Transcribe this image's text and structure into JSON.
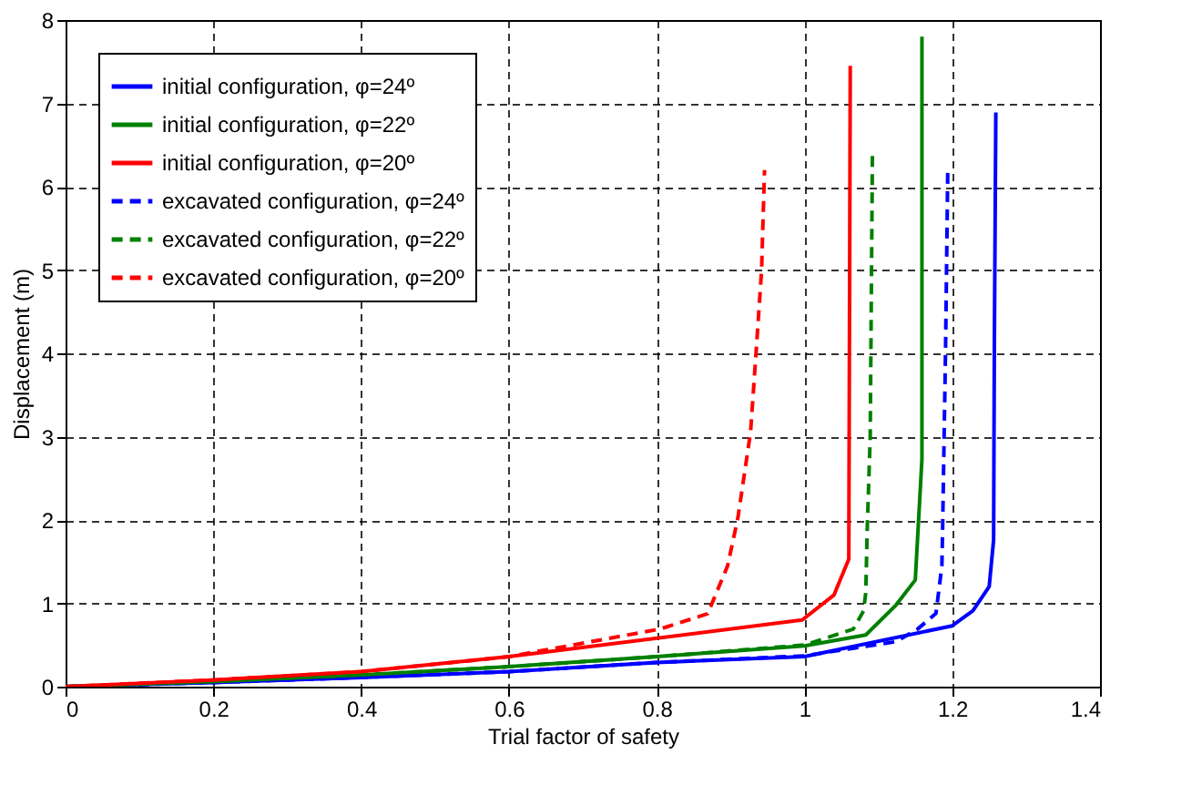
{
  "chart_data": {
    "type": "line",
    "xlabel": "Trial factor of safety",
    "ylabel": "Displacement (m)",
    "xlim": [
      0,
      1.4
    ],
    "xticks": [
      0,
      0.2,
      0.4,
      0.6,
      0.8,
      1,
      1.2,
      1.4
    ],
    "ylim": [
      0,
      8
    ],
    "yticks": [
      0,
      1,
      2,
      3,
      4,
      5,
      6,
      7,
      8
    ],
    "grid": true,
    "legend": "top left",
    "series": [
      {
        "name": "initial configuration, φ=24º",
        "color": "#0000ff",
        "line_style": "solid",
        "x": [
          0,
          0.2,
          0.4,
          0.6,
          0.8,
          1.0,
          1.2,
          1.228,
          1.25,
          1.256,
          1.257,
          1.259
        ],
        "values": [
          0,
          0.05,
          0.11,
          0.18,
          0.29,
          0.36,
          0.73,
          0.91,
          1.2,
          1.76,
          4.07,
          6.89
        ]
      },
      {
        "name": "initial configuration, φ=22º",
        "color": "#008000",
        "line_style": "solid",
        "x": [
          0,
          0.2,
          0.4,
          0.6,
          0.8,
          1.0,
          1.083,
          1.124,
          1.15,
          1.159,
          1.159
        ],
        "values": [
          0,
          0.06,
          0.14,
          0.24,
          0.36,
          0.49,
          0.62,
          0.98,
          1.28,
          2.73,
          7.8
        ]
      },
      {
        "name": "initial configuration, φ=20º",
        "color": "#ff0000",
        "line_style": "solid",
        "x": [
          0,
          0.2,
          0.4,
          0.6,
          0.997,
          1.04,
          1.06,
          1.062
        ],
        "values": [
          0,
          0.08,
          0.18,
          0.36,
          0.8,
          1.1,
          1.53,
          7.45
        ]
      },
      {
        "name": "excavated configuration, φ=24º",
        "color": "#0000ff",
        "line_style": "dashed",
        "x": [
          0,
          0.2,
          0.4,
          0.6,
          0.8,
          1.0,
          1.124,
          1.153,
          1.178,
          1.186,
          1.187,
          1.191,
          1.194
        ],
        "values": [
          0,
          0.05,
          0.11,
          0.18,
          0.29,
          0.37,
          0.54,
          0.69,
          0.88,
          1.45,
          1.9,
          4.07,
          6.23
        ]
      },
      {
        "name": "excavated configuration, φ=22º",
        "color": "#008000",
        "line_style": "dashed",
        "x": [
          0,
          0.2,
          0.4,
          0.6,
          0.8,
          1.0,
          1.066,
          1.08,
          1.083,
          1.085,
          1.089,
          1.092
        ],
        "values": [
          0,
          0.06,
          0.14,
          0.24,
          0.36,
          0.5,
          0.69,
          0.91,
          1.13,
          1.9,
          3.0,
          6.38
        ]
      },
      {
        "name": "excavated configuration, φ=20º",
        "color": "#ff0000",
        "line_style": "dashed",
        "x": [
          0,
          0.2,
          0.4,
          0.6,
          0.804,
          0.869,
          0.874,
          0.896,
          0.91,
          0.927,
          0.935,
          0.942,
          0.944,
          0.946
        ],
        "values": [
          0,
          0.08,
          0.18,
          0.36,
          0.69,
          0.875,
          0.98,
          1.45,
          2.03,
          3.05,
          4.07,
          5.0,
          5.62,
          6.2
        ]
      }
    ]
  }
}
